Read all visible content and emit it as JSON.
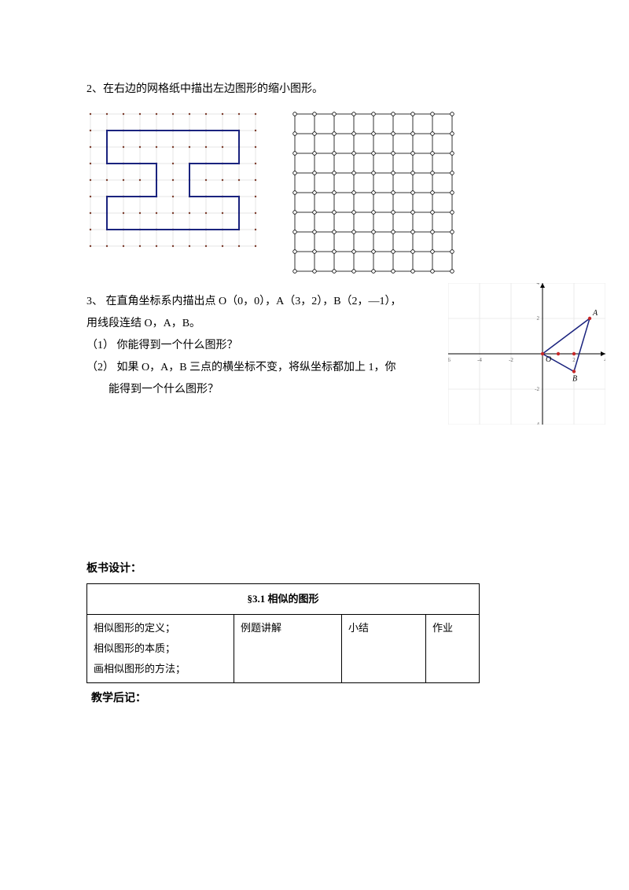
{
  "q2": {
    "text": "2、在右边的网格纸中描出左边图形的缩小图形。"
  },
  "left_grid": {
    "rows": 8,
    "cols": 10,
    "cell": 21,
    "grid_color": "#dcdcdc",
    "dot_color": "#7a3b2b",
    "shape_color": "#1a237e",
    "shape_stroke": 2,
    "i_shape_outer": [
      [
        1,
        1
      ],
      [
        9,
        1
      ],
      [
        9,
        3
      ],
      [
        6,
        3
      ],
      [
        6,
        5
      ],
      [
        9,
        5
      ],
      [
        9,
        7
      ],
      [
        1,
        7
      ],
      [
        1,
        5
      ],
      [
        4,
        5
      ],
      [
        4,
        3
      ],
      [
        1,
        3
      ]
    ]
  },
  "right_grid": {
    "rows": 8,
    "cols": 8,
    "cell": 25,
    "grid_color": "#333333",
    "node_r": 2.3
  },
  "q3": {
    "intro": "3、 在直角坐标系内描出点 O（0，0），A（3，2），B（2，—1），",
    "line2": "用线段连结 O，A，B。",
    "sub1": "（1） 你能得到一个什么图形？",
    "sub2a": "（2） 如果 O，A，B 三点的横坐标不变，将纵坐标都加上 1，你",
    "sub2b": "能得到一个什么图形？"
  },
  "coord": {
    "axis_color": "#000000",
    "grid_color": "#dddddd",
    "shape_stroke": "#1a237e",
    "point_color": "#c62828",
    "label_O": "O",
    "label_A": "A",
    "label_B": "B",
    "xrange": [
      -6,
      4
    ],
    "yrange": [
      -4,
      4
    ],
    "tick_step": 2,
    "triangle": [
      [
        0,
        0
      ],
      [
        3,
        2
      ],
      [
        2,
        -1
      ]
    ],
    "extra_points": [
      [
        1,
        0
      ],
      [
        2,
        0
      ]
    ]
  },
  "board": {
    "heading": "板书设计：",
    "title": "§3.1 相似的图形",
    "col1_lines": [
      "相似图形的定义；",
      "相似图形的本质；",
      "画相似图形的方法；"
    ],
    "col2": "例题讲解",
    "col3": "小结",
    "col4": "作业"
  },
  "postnote": "教学后记："
}
